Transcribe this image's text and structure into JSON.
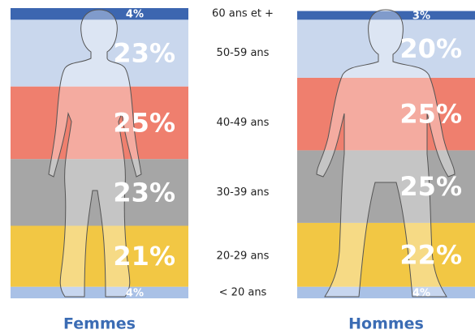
{
  "chart_data": {
    "type": "stacked-column",
    "categories": [
      "Femmes",
      "Hommes"
    ],
    "series": [
      {
        "name": "< 20 ans",
        "color": "#a9c1e6",
        "values": [
          4,
          4
        ],
        "value_labels": [
          "4%",
          "4%"
        ]
      },
      {
        "name": "20-29 ans",
        "color": "#f2c744",
        "values": [
          21,
          22
        ],
        "value_labels": [
          "21%",
          "22%"
        ]
      },
      {
        "name": "30-39 ans",
        "color": "#a6a6a6",
        "values": [
          23,
          25
        ],
        "value_labels": [
          "23%",
          "25%"
        ]
      },
      {
        "name": "40-49 ans",
        "color": "#ef7f6e",
        "values": [
          25,
          25
        ],
        "value_labels": [
          "25%",
          "25%"
        ]
      },
      {
        "name": "50-59 ans",
        "color": "#c9d7ed",
        "values": [
          23,
          20
        ],
        "value_labels": [
          "23%",
          "20%"
        ]
      },
      {
        "name": "60 ans et +",
        "color": "#3c66b0",
        "values": [
          4,
          3
        ],
        "value_labels": [
          "4%",
          "3%"
        ]
      }
    ]
  }
}
